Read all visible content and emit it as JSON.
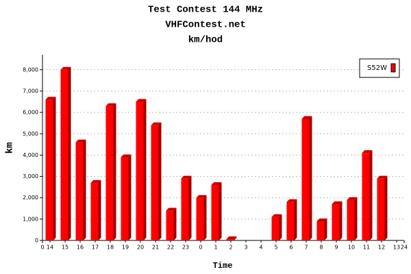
{
  "chart_data": {
    "type": "bar3d",
    "title": "Test Contest 144 MHz",
    "subtitle": "VHFContest.net",
    "unit_title": "km/hod",
    "y_label": "km",
    "x_label": "Time",
    "categories": [
      "14",
      "15",
      "16",
      "17",
      "18",
      "19",
      "20",
      "21",
      "22",
      "23",
      "0",
      "1",
      "2",
      "3",
      "4",
      "5",
      "6",
      "7",
      "8",
      "9",
      "10",
      "11",
      "12",
      "13"
    ],
    "series": [
      {
        "name": "S52W",
        "color": "#ff0000",
        "values": [
          6600,
          8000,
          4600,
          2700,
          6300,
          3900,
          6500,
          5400,
          1400,
          2900,
          2000,
          2600,
          60,
          0,
          0,
          1100,
          1800,
          5700,
          900,
          1700,
          1900,
          4100,
          2900,
          0
        ]
      }
    ],
    "xlim": [
      0,
      24
    ],
    "xticks": [
      0,
      24
    ],
    "ylim": [
      0,
      8700
    ],
    "yticks": [
      0,
      {
        "value": 1000,
        "label": "1,000"
      },
      {
        "value": 2000,
        "label": "2,000"
      },
      {
        "value": 3000,
        "label": "3,000"
      },
      {
        "value": 4000,
        "label": "4,000"
      },
      {
        "value": 5000,
        "label": "5,000"
      },
      {
        "value": 6000,
        "label": "6,000"
      },
      {
        "value": 7000,
        "label": "7,000"
      },
      {
        "value": 8000,
        "label": "8,000"
      }
    ],
    "grid": true,
    "legend": "top-right"
  }
}
